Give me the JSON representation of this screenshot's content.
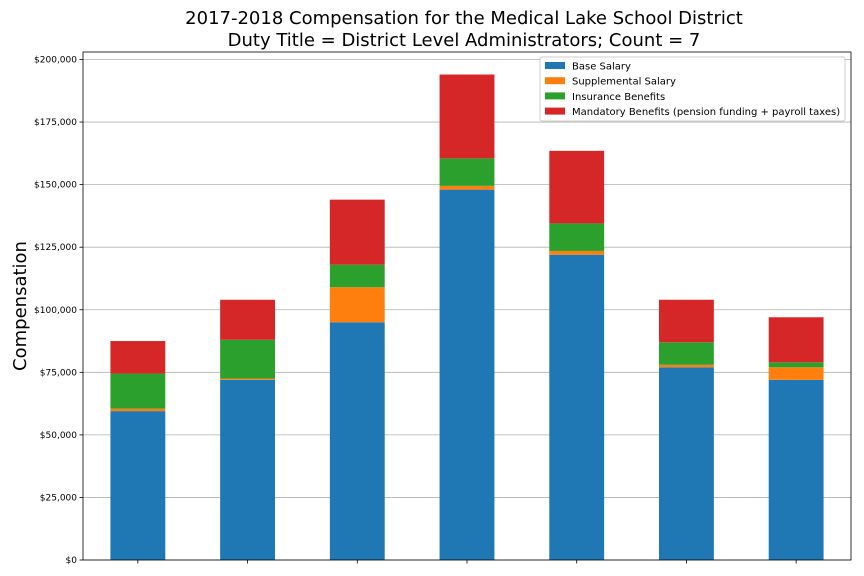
{
  "chart_data": {
    "type": "bar",
    "stacked": true,
    "title": "2017-2018 Compensation for the Medical Lake School District",
    "subtitle": "Duty Title = District Level Administrators; Count = 7",
    "ylabel": "Compensation",
    "xlabel": "",
    "ylim": [
      0,
      203000
    ],
    "yticks": [
      0,
      25000,
      50000,
      75000,
      100000,
      125000,
      150000,
      175000,
      200000
    ],
    "ytick_labels": [
      "$0",
      "$25,000",
      "$50,000",
      "$75,000",
      "$100,000",
      "$125,000",
      "$150,000",
      "$175,000",
      "$200,000"
    ],
    "grid": "horizontal",
    "legend_position": "top-right",
    "categories": [
      "",
      "",
      "",
      "",
      "",
      "",
      ""
    ],
    "series": [
      {
        "name": "Base Salary",
        "color": "#1f77b4",
        "values": [
          59500,
          72000,
          95000,
          148000,
          122000,
          77000,
          72000
        ]
      },
      {
        "name": "Supplemental Salary",
        "color": "#ff7f0e",
        "values": [
          1000,
          500,
          14000,
          1500,
          1500,
          1000,
          5000
        ]
      },
      {
        "name": "Insurance Benefits",
        "color": "#2ca02c",
        "values": [
          14000,
          15500,
          9000,
          11000,
          11000,
          9000,
          2000
        ]
      },
      {
        "name": "Mandatory Benefits (pension funding + payroll taxes)",
        "color": "#d62728",
        "values": [
          13000,
          16000,
          26000,
          33500,
          29000,
          17000,
          18000
        ]
      }
    ]
  }
}
